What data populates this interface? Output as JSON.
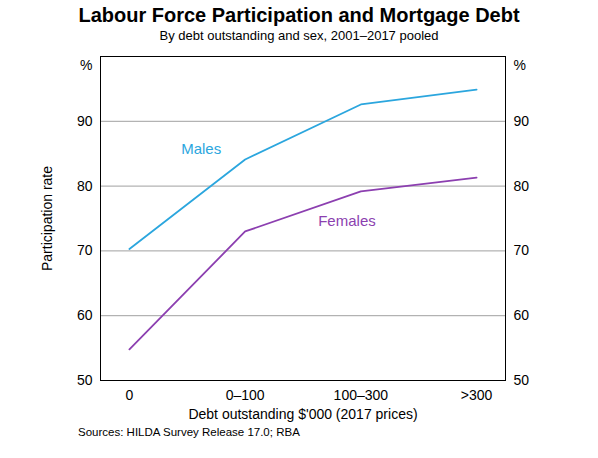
{
  "chart_data": {
    "type": "line",
    "title": "Labour Force Participation and Mortgage Debt",
    "subtitle": "By debt outstanding and sex, 2001–2017 pooled",
    "x_label": "Debt outstanding $'000 (2017 prices)",
    "y_label": "Participation rate",
    "y_unit": "%",
    "source": "Sources: HILDA Survey Release 17.0; RBA",
    "categories": [
      "0",
      "0–100",
      "100–300",
      ">300"
    ],
    "series": [
      {
        "name": "Males",
        "color": "#2ba6de",
        "values": [
          70.3,
          84.1,
          92.6,
          94.9
        ]
      },
      {
        "name": "Females",
        "color": "#8c3fb0",
        "values": [
          54.8,
          73.0,
          79.2,
          81.3
        ]
      }
    ],
    "ylim": [
      50,
      100
    ],
    "yticks": [
      50,
      60,
      70,
      80,
      90
    ],
    "grid": true
  }
}
